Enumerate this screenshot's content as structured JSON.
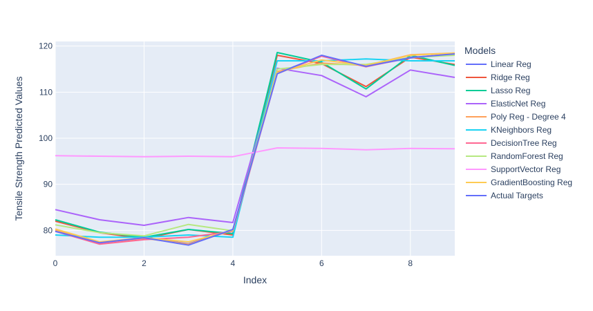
{
  "chart_data": {
    "type": "line",
    "xlabel": "Index",
    "ylabel": "Tensile Strength Predicted Values",
    "legend_title": "Models",
    "legend_position": "right",
    "xlim": [
      0,
      9
    ],
    "ylim": [
      74.5,
      121
    ],
    "x_ticks": [
      0,
      2,
      4,
      6,
      8
    ],
    "y_ticks": [
      80,
      90,
      100,
      110,
      120
    ],
    "x": [
      0,
      1,
      2,
      3,
      4,
      5,
      6,
      7,
      8,
      9
    ],
    "series": [
      {
        "name": "Linear Reg",
        "color": "#636efa",
        "values": [
          79.8,
          77.3,
          78.4,
          77.1,
          80.1,
          114.1,
          117.9,
          115.6,
          117.4,
          118.4
        ]
      },
      {
        "name": "Ridge Reg",
        "color": "#EF553B",
        "values": [
          82.0,
          79.5,
          78.2,
          80.2,
          79.0,
          118.0,
          116.2,
          111.2,
          117.6,
          116.0
        ]
      },
      {
        "name": "Lasso Reg",
        "color": "#00cc96",
        "values": [
          82.3,
          79.6,
          78.5,
          80.2,
          79.3,
          118.6,
          116.5,
          110.7,
          118.0,
          115.8
        ]
      },
      {
        "name": "ElasticNet Reg",
        "color": "#ab63fa",
        "values": [
          84.5,
          82.3,
          81.1,
          82.8,
          81.7,
          115.2,
          113.6,
          109.0,
          114.8,
          113.2
        ]
      },
      {
        "name": "Poly Reg - Degree 4",
        "color": "#FFA15A",
        "values": [
          80.0,
          77.3,
          78.3,
          77.0,
          80.0,
          114.5,
          116.3,
          115.8,
          118.1,
          118.5
        ]
      },
      {
        "name": "KNeighbors Reg",
        "color": "#19d3f3",
        "values": [
          79.0,
          78.5,
          78.5,
          79.0,
          78.5,
          116.8,
          116.8,
          117.2,
          116.8,
          116.8
        ]
      },
      {
        "name": "DecisionTree Reg",
        "color": "#FF6692",
        "values": [
          79.8,
          77.0,
          78.0,
          78.5,
          79.8,
          114.0,
          117.8,
          115.5,
          117.5,
          118.3
        ]
      },
      {
        "name": "RandomForest Reg",
        "color": "#B6E880",
        "values": [
          81.2,
          79.5,
          78.8,
          81.3,
          79.9,
          115.0,
          116.0,
          116.0,
          117.5,
          118.0
        ]
      },
      {
        "name": "SupportVector Reg",
        "color": "#FF97FF",
        "values": [
          96.2,
          96.1,
          96.0,
          96.1,
          96.0,
          97.9,
          97.8,
          97.5,
          97.8,
          97.7
        ]
      },
      {
        "name": "GradientBoosting Reg",
        "color": "#FECB52",
        "values": [
          80.3,
          77.5,
          78.4,
          77.5,
          80.0,
          114.2,
          117.0,
          115.8,
          118.0,
          118.5
        ]
      },
      {
        "name": "Actual Targets",
        "color": "#636efa",
        "values": [
          79.8,
          77.3,
          78.4,
          76.8,
          80.2,
          114.0,
          118.0,
          115.6,
          117.5,
          118.3
        ]
      }
    ]
  }
}
